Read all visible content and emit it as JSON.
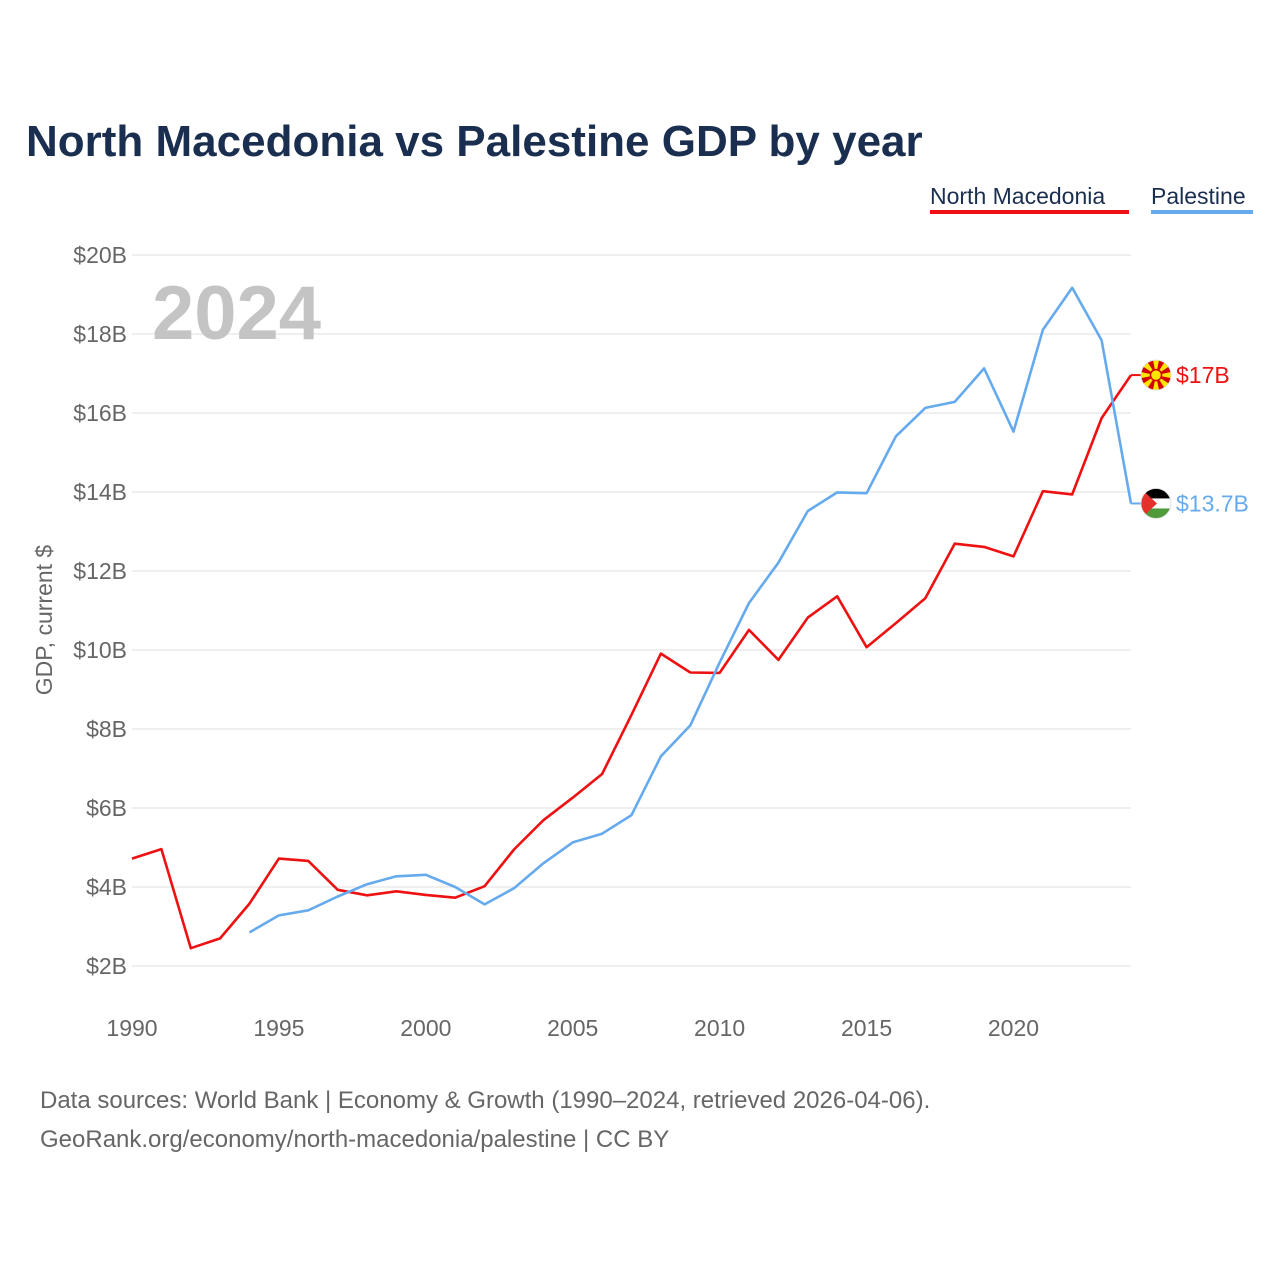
{
  "chart_data": {
    "type": "line",
    "title": "North Macedonia vs Palestine GDP by year",
    "year_watermark": "2024",
    "ylabel": "GDP, current $",
    "xlabel": "",
    "xlim": [
      1990,
      2024
    ],
    "ylim": [
      1.5,
      20
    ],
    "x_ticks": [
      1990,
      1995,
      2000,
      2005,
      2010,
      2015,
      2020
    ],
    "y_ticks": [
      2,
      4,
      6,
      8,
      10,
      12,
      14,
      16,
      18,
      20
    ],
    "y_tick_labels": [
      "$2B",
      "$4B",
      "$6B",
      "$8B",
      "$10B",
      "$12B",
      "$14B",
      "$16B",
      "$18B",
      "$20B"
    ],
    "grid": true,
    "legend_position": "top-right",
    "series": [
      {
        "name": "North Macedonia",
        "color": "#ee1111",
        "end_label": "$17B",
        "flag_icon": "north-macedonia-flag-icon",
        "x": [
          1990,
          1991,
          1992,
          1993,
          1994,
          1995,
          1996,
          1997,
          1998,
          1999,
          2000,
          2001,
          2002,
          2003,
          2004,
          2005,
          2006,
          2007,
          2008,
          2009,
          2010,
          2011,
          2012,
          2013,
          2014,
          2015,
          2016,
          2017,
          2018,
          2019,
          2020,
          2021,
          2022,
          2023,
          2024
        ],
        "values": [
          4.72,
          4.96,
          2.45,
          2.7,
          3.58,
          4.72,
          4.66,
          3.93,
          3.79,
          3.89,
          3.8,
          3.73,
          4.02,
          4.95,
          5.69,
          6.26,
          6.86,
          8.36,
          9.91,
          9.43,
          9.42,
          10.51,
          9.75,
          10.82,
          11.36,
          10.07,
          10.68,
          11.31,
          12.69,
          12.61,
          12.37,
          14.02,
          13.94,
          15.87,
          16.96
        ]
      },
      {
        "name": "Palestine",
        "color": "#66aaee",
        "end_label": "$13.7B",
        "flag_icon": "palestine-flag-icon",
        "x": [
          1994,
          1995,
          1996,
          1997,
          1998,
          1999,
          2000,
          2001,
          2002,
          2003,
          2004,
          2005,
          2006,
          2007,
          2008,
          2009,
          2010,
          2011,
          2012,
          2013,
          2014,
          2015,
          2016,
          2017,
          2018,
          2019,
          2020,
          2021,
          2022,
          2023,
          2024
        ],
        "values": [
          2.85,
          3.28,
          3.41,
          3.76,
          4.07,
          4.27,
          4.31,
          4.0,
          3.56,
          3.97,
          4.6,
          5.13,
          5.35,
          5.82,
          7.31,
          8.09,
          9.68,
          11.19,
          12.21,
          13.52,
          13.99,
          13.97,
          15.41,
          16.13,
          16.28,
          17.13,
          15.53,
          18.11,
          19.17,
          17.84,
          13.71
        ]
      }
    ]
  },
  "footer": {
    "line1": "Data sources: World Bank | Economy & Growth (1990–2024, retrieved 2026-04-06).",
    "line2": "GeoRank.org/economy/north-macedonia/palestine | CC BY"
  },
  "colors": {
    "title": "#1a2e4f",
    "tick_text": "#666666",
    "grid": "#e5e5e5",
    "watermark": "#c4c4c4"
  }
}
